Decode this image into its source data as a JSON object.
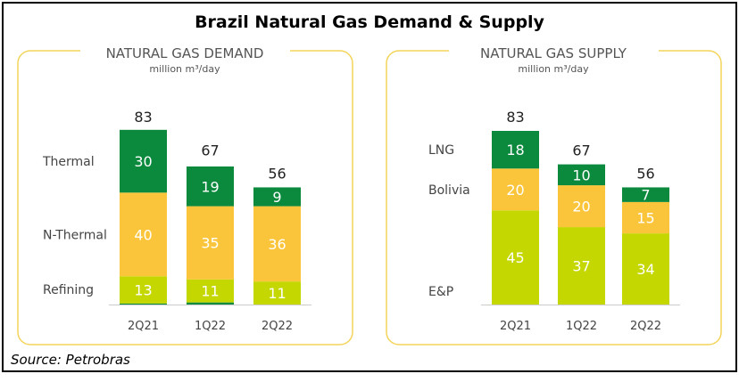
{
  "title": "Brazil Natural Gas Demand & Supply",
  "source": "Source: Petrobras",
  "colors": {
    "dark_green": "#0b8a3e",
    "yellow": "#fbc53b",
    "lime": "#c5d700",
    "panel_border": "#f3d45a"
  },
  "chart_data": [
    {
      "type": "bar",
      "stacked": true,
      "title": "NATURAL GAS DEMAND",
      "subtitle": "million m³/day",
      "categories": [
        "2Q21",
        "1Q22",
        "2Q22"
      ],
      "totals": [
        83,
        67,
        56
      ],
      "series": [
        {
          "name": "",
          "values": [
            0.5,
            1,
            0
          ],
          "color": "#0b8a3e"
        },
        {
          "name": "Refining",
          "values": [
            13,
            11,
            11
          ],
          "color": "#c5d700"
        },
        {
          "name": "N-Thermal",
          "values": [
            40,
            35,
            36
          ],
          "color": "#fbc53b"
        },
        {
          "name": "Thermal",
          "values": [
            30,
            19,
            9
          ],
          "color": "#0b8a3e"
        }
      ]
    },
    {
      "type": "bar",
      "stacked": true,
      "title": "NATURAL GAS SUPPLY",
      "subtitle": "million m³/day",
      "categories": [
        "2Q21",
        "1Q22",
        "2Q22"
      ],
      "totals": [
        83,
        67,
        56
      ],
      "series": [
        {
          "name": "E&P",
          "values": [
            45,
            37,
            34
          ],
          "color": "#c5d700"
        },
        {
          "name": "Bolivia",
          "values": [
            20,
            20,
            15
          ],
          "color": "#fbc53b"
        },
        {
          "name": "LNG",
          "values": [
            18,
            10,
            7
          ],
          "color": "#0b8a3e"
        }
      ]
    }
  ]
}
